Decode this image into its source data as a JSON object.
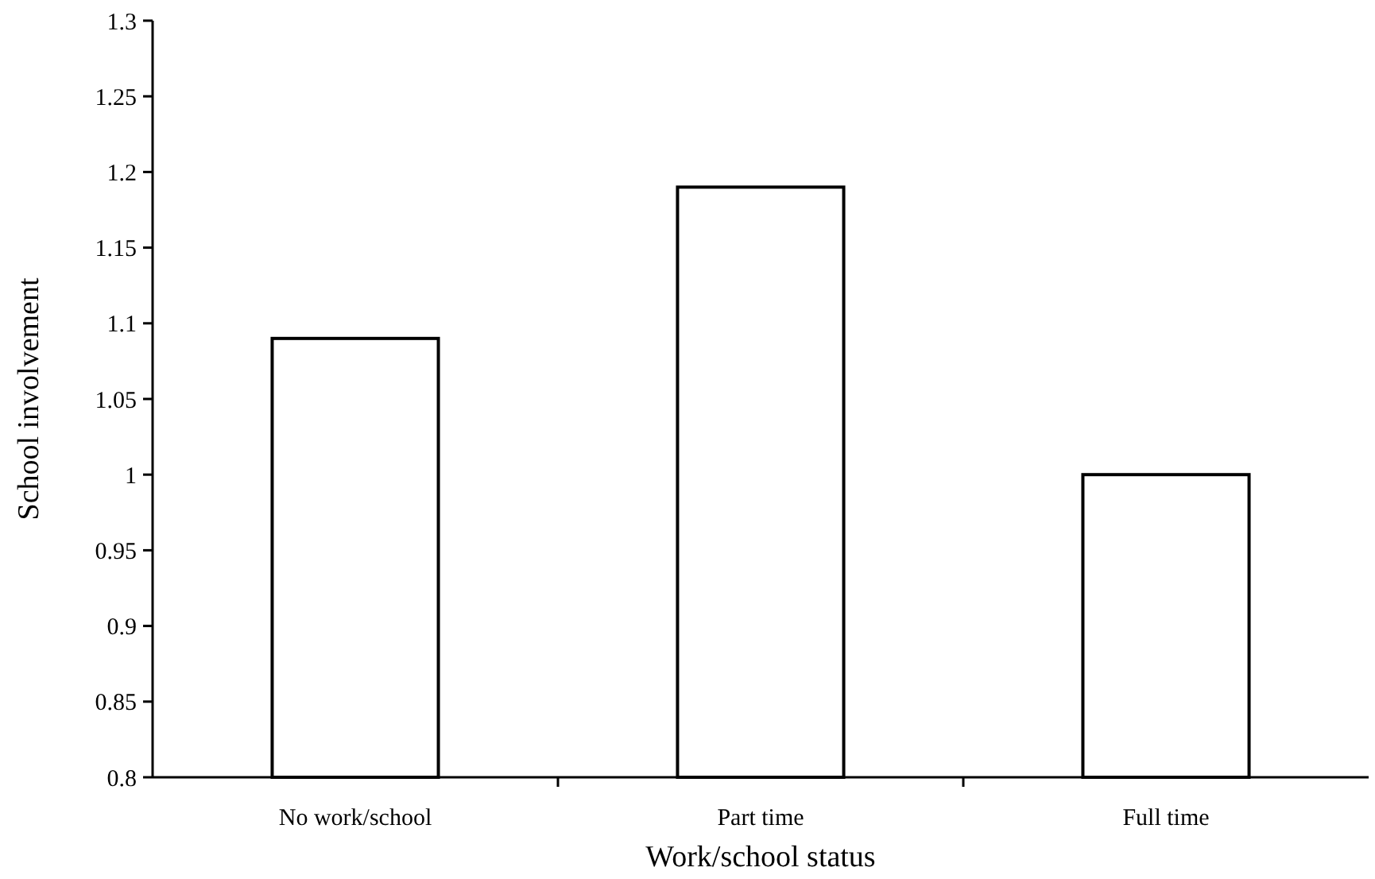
{
  "chart_data": {
    "type": "bar",
    "xlabel": "Work/school status",
    "ylabel": "School involvement",
    "categories": [
      "No work/school",
      "Part time",
      "Full time"
    ],
    "values": [
      1.09,
      1.19,
      1.0
    ],
    "color": "#ffffff",
    "ylim": [
      0.8,
      1.3
    ],
    "yticks": [
      {
        "value": 0.8,
        "label": "0.8"
      },
      {
        "value": 0.85,
        "label": "0.85"
      },
      {
        "value": 0.9,
        "label": "0.9"
      },
      {
        "value": 0.95,
        "label": "0.95"
      },
      {
        "value": 1,
        "label": "1"
      },
      {
        "value": 1.05,
        "label": "1.05"
      },
      {
        "value": 1.1,
        "label": "1.1"
      },
      {
        "value": 1.15,
        "label": "1.15"
      },
      {
        "value": 1.2,
        "label": "1.2"
      },
      {
        "value": 1.25,
        "label": "1.25"
      },
      {
        "value": 1.3,
        "label": "1.3"
      }
    ],
    "grid": false
  }
}
